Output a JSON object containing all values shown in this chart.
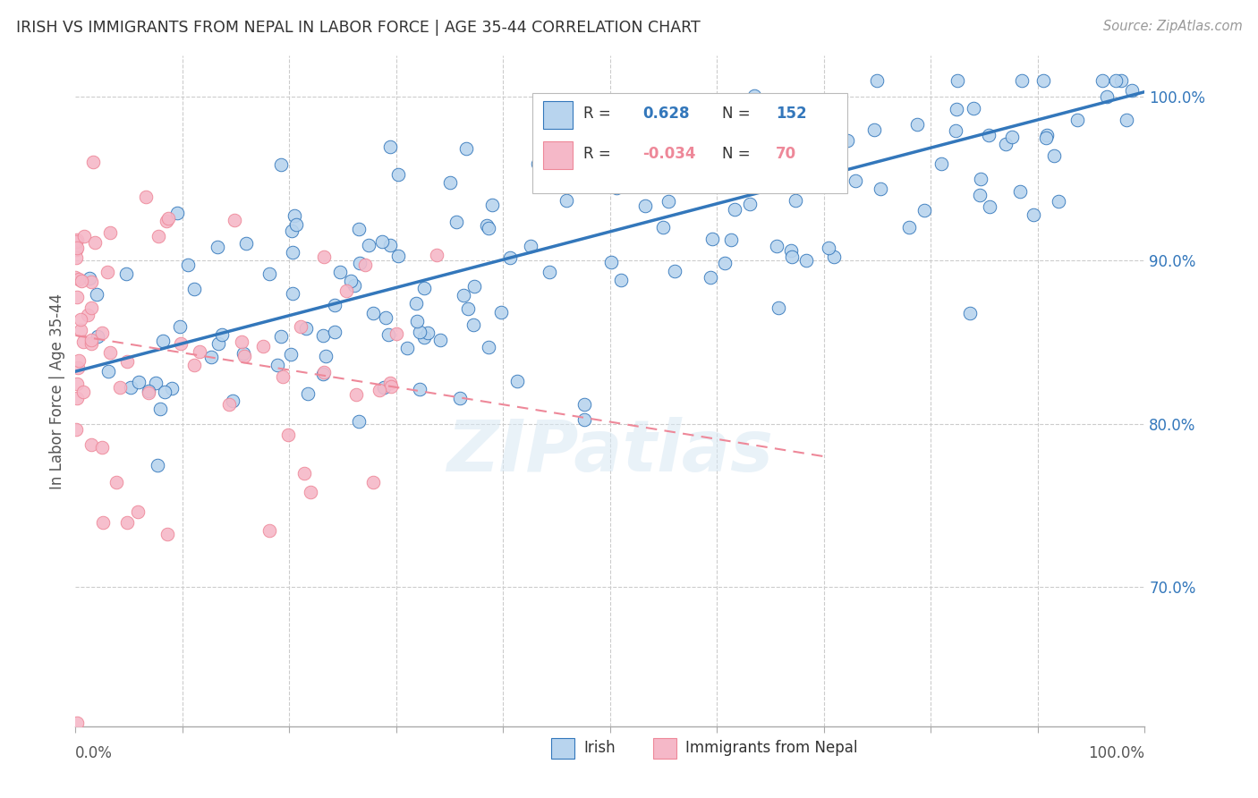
{
  "title": "IRISH VS IMMIGRANTS FROM NEPAL IN LABOR FORCE | AGE 35-44 CORRELATION CHART",
  "source": "Source: ZipAtlas.com",
  "ylabel": "In Labor Force | Age 35-44",
  "ytick_vals": [
    0.7,
    0.8,
    0.9,
    1.0
  ],
  "xlim": [
    0.0,
    1.0
  ],
  "ylim": [
    0.615,
    1.025
  ],
  "blue_R": 0.628,
  "blue_N": 152,
  "pink_R": -0.034,
  "pink_N": 70,
  "blue_color": "#b8d4ee",
  "pink_color": "#f5b8c8",
  "blue_line_color": "#3377bb",
  "pink_line_color": "#ee8899",
  "grid_color": "#cccccc",
  "watermark": "ZIPatlas",
  "legend_label_blue": "Irish",
  "legend_label_pink": "Immigrants from Nepal",
  "blue_trend_x0": 0.0,
  "blue_trend_y0": 0.832,
  "blue_trend_x1": 1.0,
  "blue_trend_y1": 1.003,
  "pink_trend_x0": 0.0,
  "pink_trend_y0": 0.854,
  "pink_trend_x1": 0.7,
  "pink_trend_y1": 0.78
}
